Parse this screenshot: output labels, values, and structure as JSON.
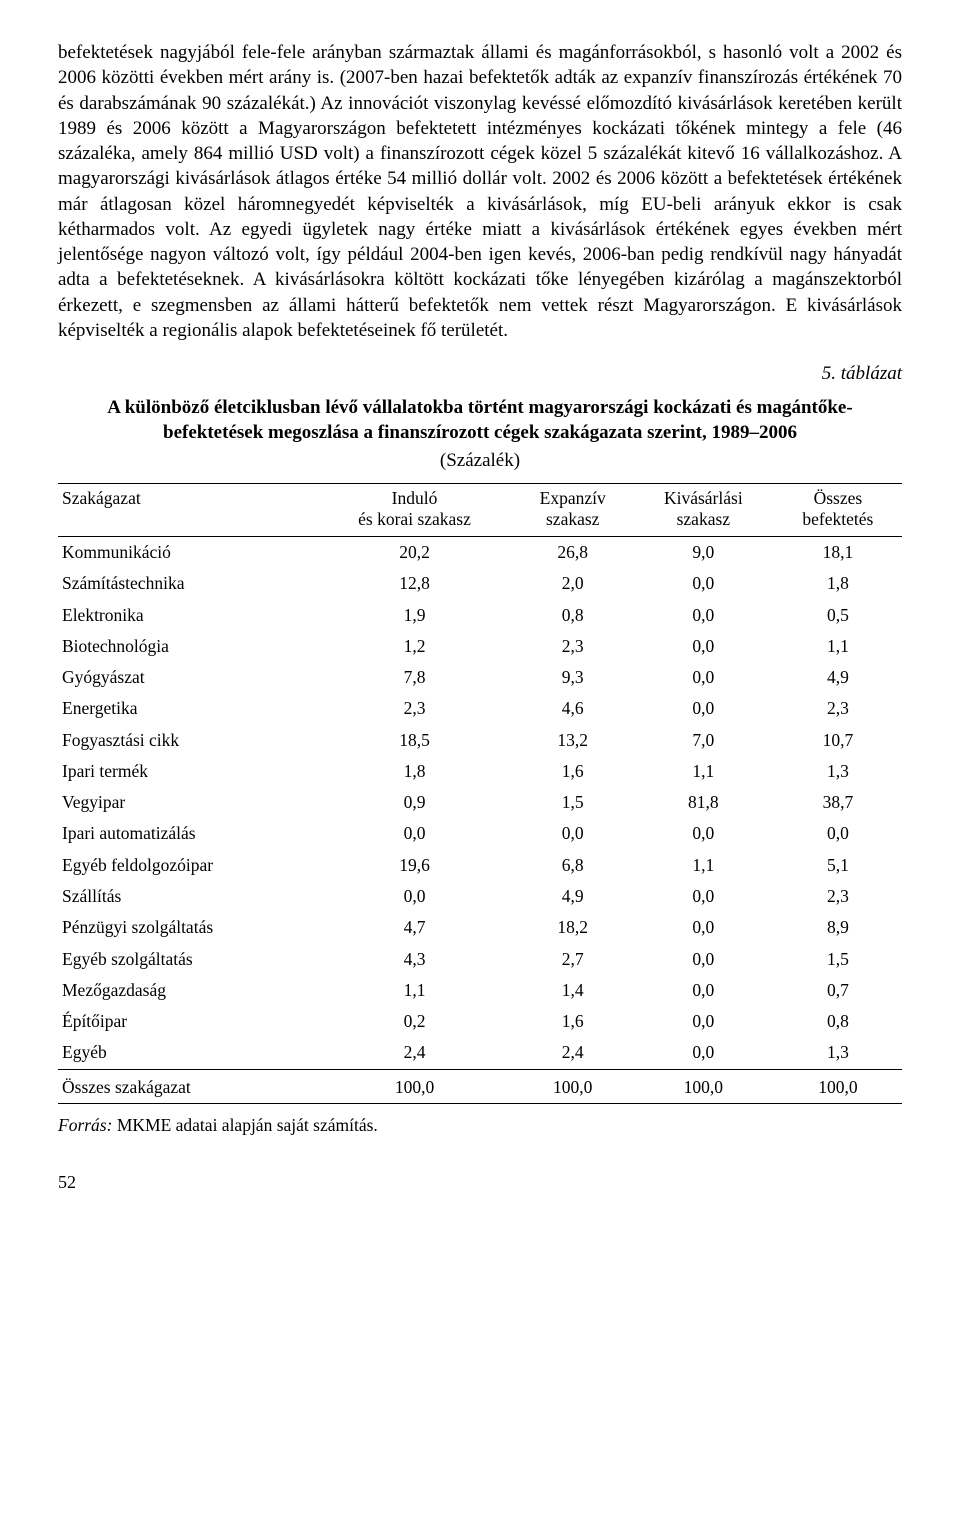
{
  "paragraph": "befektetések nagyjából fele-fele arányban származtak állami és magánforrásokból, s hasonló volt a 2002 és 2006 közötti években mért arány is. (2007-ben hazai befektetők adták az expanzív finanszírozás értékének 70 és darabszámának 90 százalékát.) Az innovációt viszonylag kevéssé előmozdító kivásárlások keretében került 1989 és 2006 között a Magyarországon befektetett intézményes kockázati tőkének mintegy a fele (46 százaléka, amely 864 millió USD volt) a finanszírozott cégek közel 5 százalékát kitevő 16 vállalkozáshoz. A magyarországi kivásárlások átlagos értéke 54 millió dollár volt. 2002 és 2006 között a befektetések értékének már átlagosan közel háromnegyedét képviselték a kivásárlások, míg EU-beli arányuk ekkor is csak kétharmados volt. Az egyedi ügyletek nagy értéke miatt a kivásárlások értékének egyes években mért jelentősége nagyon változó volt, így például 2004-ben igen kevés, 2006-ban pedig rendkívül nagy hányadát adta a befektetéseknek. A kivásárlásokra költött kockázati tőke lényegében kizárólag a magánszektorból érkezett, e szegmensben az állami hátterű befektetők nem vettek részt Magyarországon. E kivásárlások képviselték a regionális alapok befektetéseinek fő területét.",
  "table_ref": "5. táblázat",
  "table_title": "A különböző életciklusban lévő vállalatokba történt magyarországi kockázati és magántőke-befektetések megoszlása a finanszírozott cégek szakágazata szerint, 1989–2006",
  "table_subtitle": "(Százalék)",
  "columns": [
    "Szakágazat",
    "Induló\nés korai szakasz",
    "Expanzív\nszakasz",
    "Kivásárlási\nszakasz",
    "Összes\nbefektetés"
  ],
  "rows": [
    [
      "Kommunikáció",
      "20,2",
      "26,8",
      "9,0",
      "18,1"
    ],
    [
      "Számítástechnika",
      "12,8",
      "2,0",
      "0,0",
      "1,8"
    ],
    [
      "Elektronika",
      "1,9",
      "0,8",
      "0,0",
      "0,5"
    ],
    [
      "Biotechnológia",
      "1,2",
      "2,3",
      "0,0",
      "1,1"
    ],
    [
      "Gyógyászat",
      "7,8",
      "9,3",
      "0,0",
      "4,9"
    ],
    [
      "Energetika",
      "2,3",
      "4,6",
      "0,0",
      "2,3"
    ],
    [
      "Fogyasztási cikk",
      "18,5",
      "13,2",
      "7,0",
      "10,7"
    ],
    [
      "Ipari termék",
      "1,8",
      "1,6",
      "1,1",
      "1,3"
    ],
    [
      "Vegyipar",
      "0,9",
      "1,5",
      "81,8",
      "38,7"
    ],
    [
      "Ipari automatizálás",
      "0,0",
      "0,0",
      "0,0",
      "0,0"
    ],
    [
      "Egyéb feldolgozóipar",
      "19,6",
      "6,8",
      "1,1",
      "5,1"
    ],
    [
      "Szállítás",
      "0,0",
      "4,9",
      "0,0",
      "2,3"
    ],
    [
      "Pénzügyi szolgáltatás",
      "4,7",
      "18,2",
      "0,0",
      "8,9"
    ],
    [
      "Egyéb szolgáltatás",
      "4,3",
      "2,7",
      "0,0",
      "1,5"
    ],
    [
      "Mezőgazdaság",
      "1,1",
      "1,4",
      "0,0",
      "0,7"
    ],
    [
      "Építőipar",
      "0,2",
      "1,6",
      "0,0",
      "0,8"
    ],
    [
      "Egyéb",
      "2,4",
      "2,4",
      "0,0",
      "1,3"
    ]
  ],
  "sum_row": [
    "Összes szakágazat",
    "100,0",
    "100,0",
    "100,0",
    "100,0"
  ],
  "source_label": "Forrás:",
  "source_text": "MKME adatai alapján saját számítás.",
  "page_number": "52"
}
